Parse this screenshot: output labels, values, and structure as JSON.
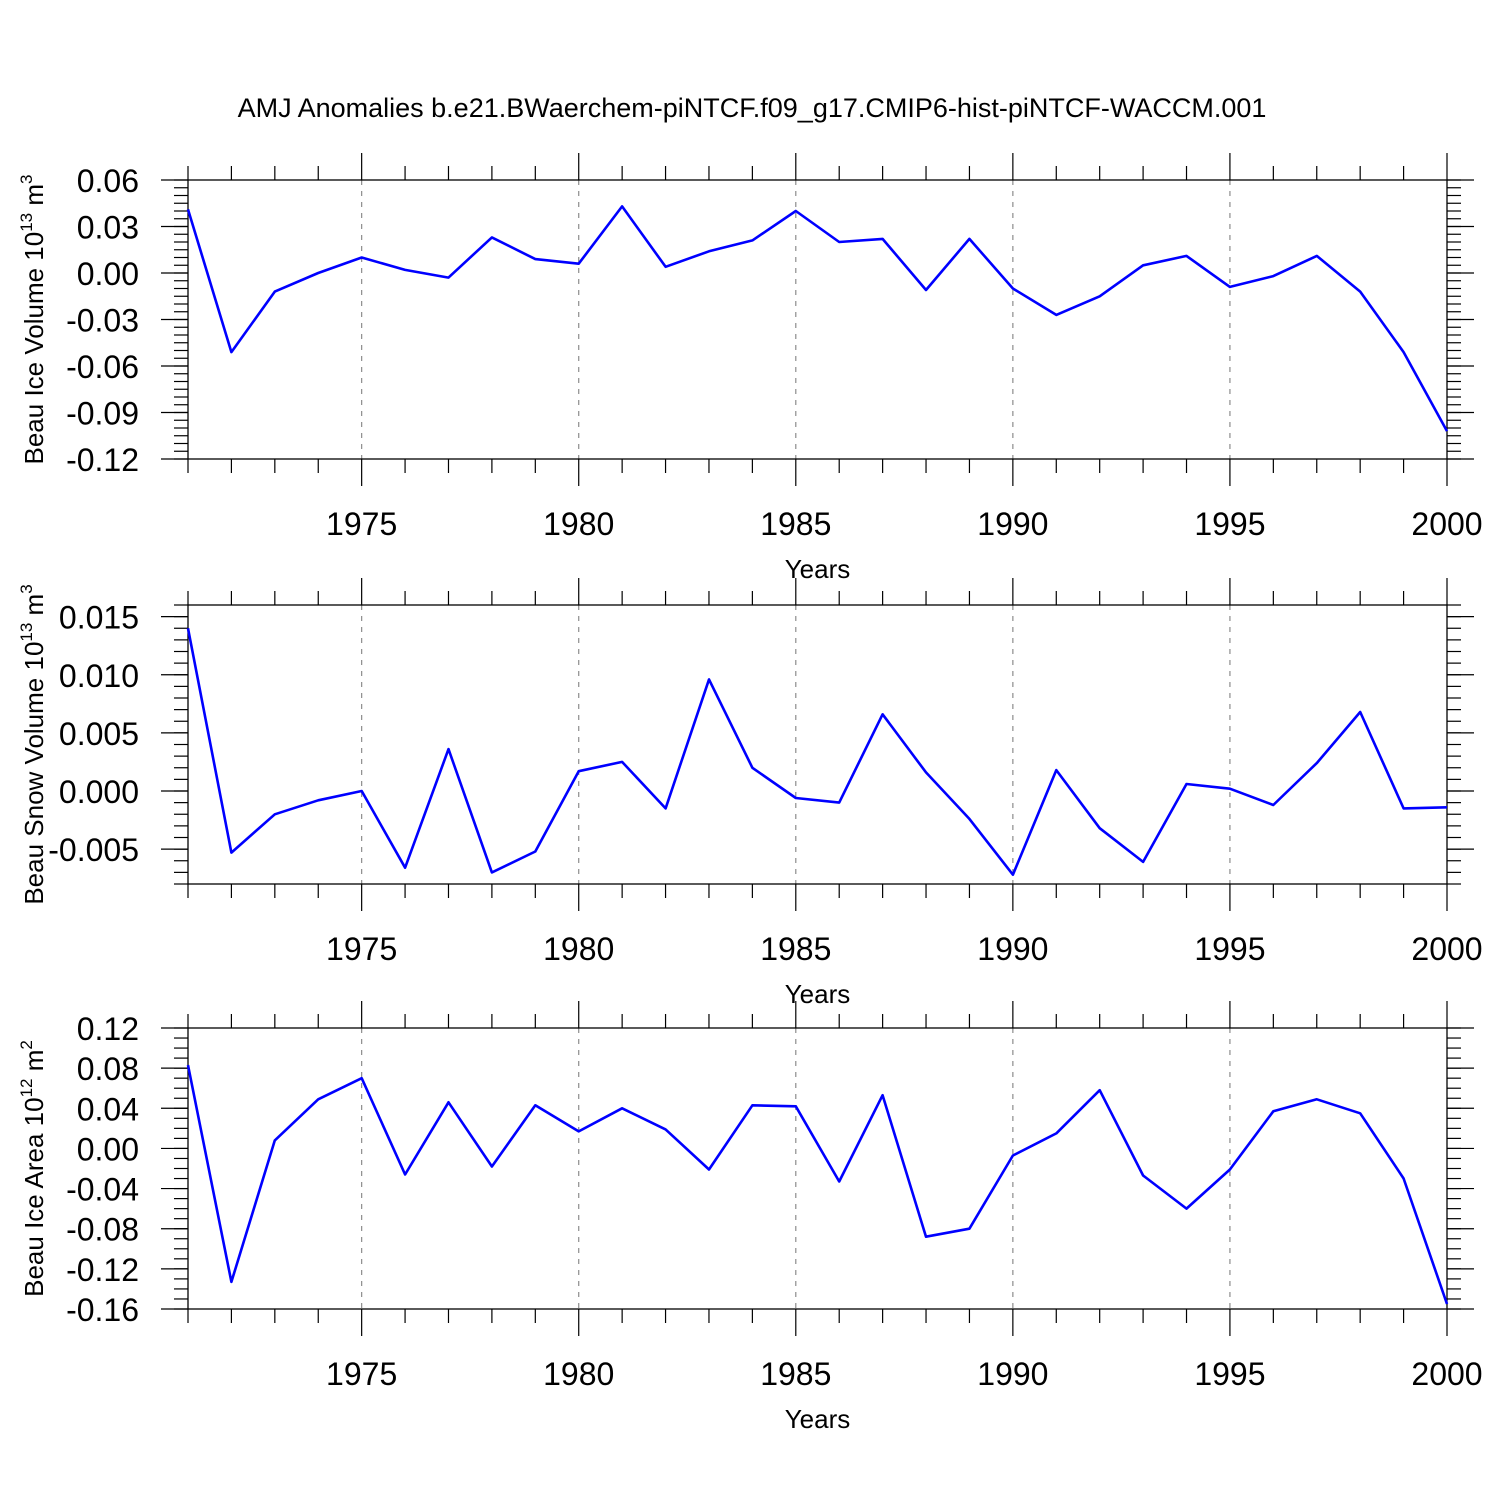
{
  "title": "AMJ Anomalies b.e21.BWaerchem-piNTCF.f09_g17.CMIP6-hist-piNTCF-WACCM.001",
  "colors": {
    "series": "#0000ff",
    "axis": "#000000",
    "grid": "#8c8c8c"
  },
  "chart_data": [
    {
      "type": "line",
      "xlabel": "Years",
      "ylabel": "Beau Ice Volume 10",
      "ylabel_exp": "13",
      "ylabel_unit": "m",
      "ylabel_unit_exp": "3",
      "xlim": [
        1971,
        2000
      ],
      "ylim": [
        -0.12,
        0.06
      ],
      "x_ticks": [
        "1975",
        "1980",
        "1985",
        "1990",
        "1995",
        "2000"
      ],
      "y_ticks": [
        "0.06",
        "0.03",
        "0.00",
        "-0.03",
        "-0.06",
        "-0.09",
        "-0.12"
      ],
      "grid": "dashed vertical lines at labeled years",
      "x": [
        1971,
        1972,
        1973,
        1974,
        1975,
        1976,
        1977,
        1978,
        1979,
        1980,
        1981,
        1982,
        1983,
        1984,
        1985,
        1986,
        1987,
        1988,
        1989,
        1990,
        1991,
        1992,
        1993,
        1994,
        1995,
        1996,
        1997,
        1998,
        1999,
        2000
      ],
      "values": [
        0.041,
        -0.051,
        -0.012,
        0.0,
        0.01,
        0.002,
        -0.003,
        0.023,
        0.009,
        0.006,
        0.043,
        0.004,
        0.014,
        0.021,
        0.04,
        0.02,
        0.022,
        -0.011,
        0.022,
        -0.01,
        -0.027,
        -0.015,
        0.005,
        0.011,
        -0.009,
        -0.002,
        0.011,
        -0.012,
        -0.051,
        -0.102
      ]
    },
    {
      "type": "line",
      "xlabel": "Years",
      "ylabel": "Beau Snow Volume 10",
      "ylabel_exp": "13",
      "ylabel_unit": "m",
      "ylabel_unit_exp": "3",
      "xlim": [
        1971,
        2000
      ],
      "ylim": [
        -0.008,
        0.016
      ],
      "x_ticks": [
        "1975",
        "1980",
        "1985",
        "1990",
        "1995",
        "2000"
      ],
      "y_ticks": [
        "0.015",
        "0.010",
        "0.005",
        "0.000",
        "-0.005"
      ],
      "grid": "dashed vertical lines at labeled years",
      "x": [
        1971,
        1972,
        1973,
        1974,
        1975,
        1976,
        1977,
        1978,
        1979,
        1980,
        1981,
        1982,
        1983,
        1984,
        1985,
        1986,
        1987,
        1988,
        1989,
        1990,
        1991,
        1992,
        1993,
        1994,
        1995,
        1996,
        1997,
        1998,
        1999,
        2000
      ],
      "values": [
        0.014,
        -0.0053,
        -0.002,
        -0.0008,
        0.0,
        -0.0066,
        0.0036,
        -0.007,
        -0.0052,
        0.0017,
        0.0025,
        -0.0015,
        0.0096,
        0.002,
        -0.0006,
        -0.001,
        0.0066,
        0.0016,
        -0.0024,
        -0.0072,
        0.0018,
        -0.0032,
        -0.0061,
        0.0006,
        0.0002,
        -0.0012,
        0.0024,
        0.0068,
        -0.0015,
        -0.0014
      ]
    },
    {
      "type": "line",
      "xlabel": "Years",
      "ylabel": "Beau Ice Area 10",
      "ylabel_exp": "12",
      "ylabel_unit": "m",
      "ylabel_unit_exp": "2",
      "xlim": [
        1971,
        2000
      ],
      "ylim": [
        -0.16,
        0.12
      ],
      "x_ticks": [
        "1975",
        "1980",
        "1985",
        "1990",
        "1995",
        "2000"
      ],
      "y_ticks": [
        "0.12",
        "0.08",
        "0.04",
        "0.00",
        "-0.04",
        "-0.08",
        "-0.12",
        "-0.16"
      ],
      "grid": "dashed vertical lines at labeled years",
      "x": [
        1971,
        1972,
        1973,
        1974,
        1975,
        1976,
        1977,
        1978,
        1979,
        1980,
        1981,
        1982,
        1983,
        1984,
        1985,
        1986,
        1987,
        1988,
        1989,
        1990,
        1991,
        1992,
        1993,
        1994,
        1995,
        1996,
        1997,
        1998,
        1999,
        2000
      ],
      "values": [
        0.083,
        -0.133,
        0.008,
        0.049,
        0.07,
        -0.026,
        0.046,
        -0.018,
        0.043,
        0.017,
        0.04,
        0.019,
        -0.021,
        0.043,
        0.042,
        -0.033,
        0.053,
        -0.088,
        -0.08,
        -0.007,
        0.015,
        0.058,
        -0.027,
        -0.06,
        -0.021,
        0.037,
        0.049,
        0.035,
        -0.03,
        -0.155
      ]
    }
  ]
}
